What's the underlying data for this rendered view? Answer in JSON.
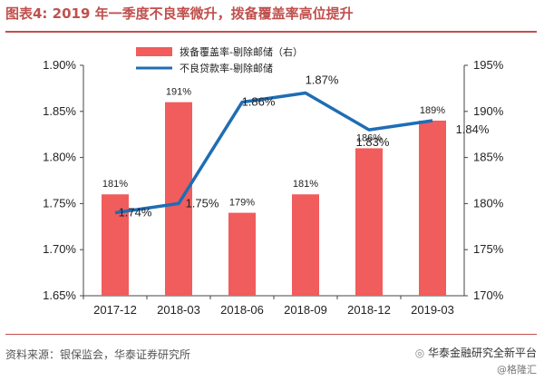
{
  "header": {
    "title": "图表4:   2019 年一季度不良率微升，拨备覆盖率高位提升"
  },
  "footer": {
    "source": "资料来源：银保监会，华泰证券研究所",
    "brand": "华泰金融研究全新平台",
    "brand_sub": "@格隆汇"
  },
  "chart_data": {
    "type": "bar+line",
    "categories": [
      "2017-12",
      "2018-03",
      "2018-06",
      "2018-09",
      "2018-12",
      "2019-03"
    ],
    "series": [
      {
        "name": "拨备覆盖率-剔除邮储（右）",
        "type": "bar",
        "axis": "right",
        "values": [
          181,
          191,
          179,
          181,
          186,
          189
        ],
        "labels": [
          "181%",
          "191%",
          "179%",
          "181%",
          "186%",
          "189%"
        ],
        "color": "#f15c5c"
      },
      {
        "name": "不良贷款率-剔除邮储",
        "type": "line",
        "axis": "left",
        "values": [
          1.74,
          1.75,
          1.86,
          1.87,
          1.83,
          1.84
        ],
        "labels": [
          "1.74%",
          "1.75%",
          "1.86%",
          "1.87%",
          "1.83%",
          "1.84%"
        ],
        "color": "#1f6db5"
      }
    ],
    "left_axis": {
      "min": 1.65,
      "max": 1.9,
      "ticks": [
        "1.65%",
        "1.70%",
        "1.75%",
        "1.80%",
        "1.85%",
        "1.90%"
      ]
    },
    "right_axis": {
      "min": 170,
      "max": 195,
      "ticks": [
        "170%",
        "175%",
        "180%",
        "185%",
        "190%",
        "195%"
      ]
    },
    "legend_position": "top-center"
  }
}
